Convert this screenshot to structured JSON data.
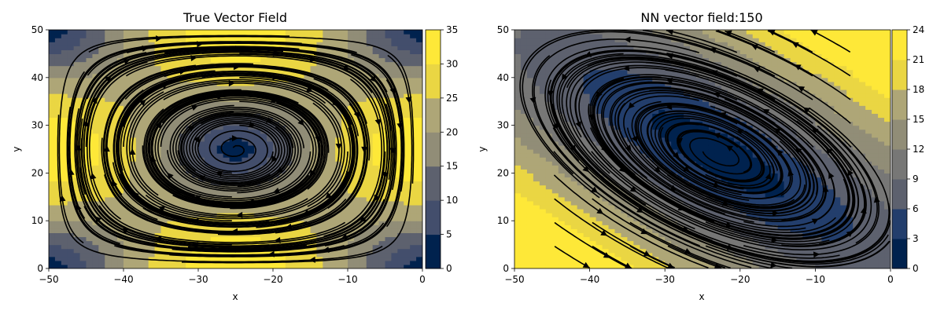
{
  "colormap": [
    "#00224e",
    "#233e6c",
    "#434e6c",
    "#5d616e",
    "#777776",
    "#918d77",
    "#aea677",
    "#cbba69",
    "#ead643",
    "#fee838"
  ],
  "chart_data": [
    {
      "type": "contour",
      "title": "True Vector Field",
      "xlabel": "x",
      "ylabel": "y",
      "xlim": [
        -50,
        0
      ],
      "ylim": [
        0,
        50
      ],
      "xticks": [
        "−50",
        "−40",
        "−30",
        "−20",
        "−10",
        "0"
      ],
      "yticks": [
        "0",
        "10",
        "20",
        "30",
        "40",
        "50"
      ],
      "colorbar_ticks": [
        "0",
        "5",
        "10",
        "15",
        "20",
        "25",
        "30",
        "35"
      ],
      "colorbar_range": [
        0,
        35
      ],
      "field": "circulation",
      "center": [
        -25,
        25
      ]
    },
    {
      "type": "contour",
      "title": "NN vector field:150",
      "xlabel": "x",
      "ylabel": "y",
      "xlim": [
        -50,
        0
      ],
      "ylim": [
        0,
        50
      ],
      "xticks": [
        "−50",
        "−40",
        "−30",
        "−20",
        "−10",
        "0"
      ],
      "yticks": [
        "0",
        "10",
        "20",
        "30",
        "40",
        "50"
      ],
      "colorbar_ticks": [
        "0",
        "3",
        "6",
        "9",
        "12",
        "15",
        "18",
        "21",
        "24"
      ],
      "colorbar_range": [
        0,
        24
      ],
      "field": "learned-circulation",
      "center": [
        -23,
        24
      ]
    }
  ]
}
